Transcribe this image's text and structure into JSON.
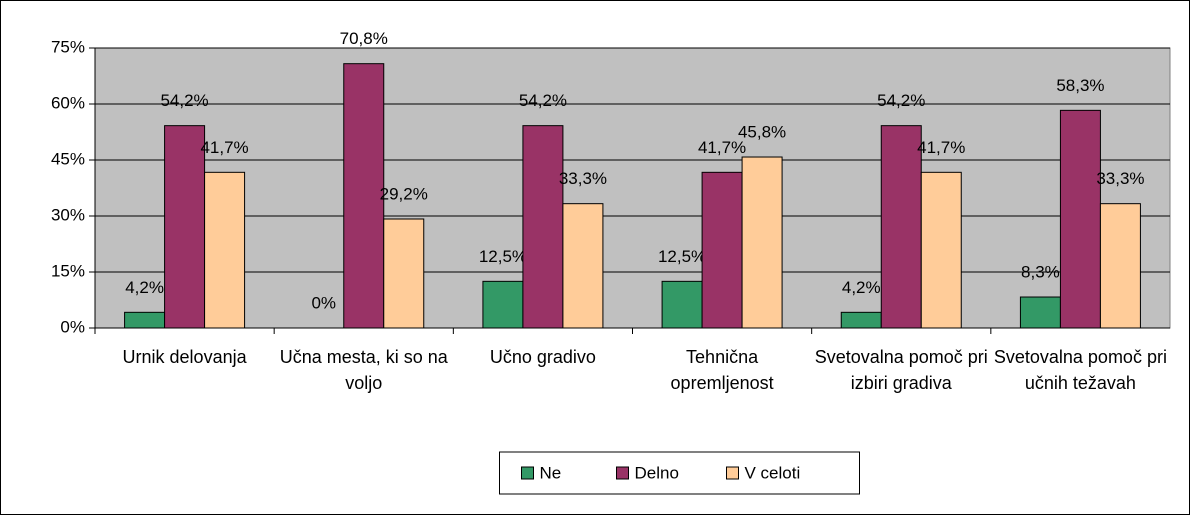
{
  "chart_data": {
    "type": "bar",
    "categories": [
      "Urnik delovanja",
      "Učna mesta, ki so na voljo",
      "Učno gradivo",
      "Tehnična opremljenost",
      "Svetovalna pomoč pri izbiri gradiva",
      "Svetovalna pomoč pri učnih težavah"
    ],
    "series": [
      {
        "name": "Ne",
        "color": "#339966",
        "values": [
          4.2,
          0,
          12.5,
          12.5,
          4.2,
          8.3
        ],
        "value_labels": [
          "4,2%",
          "0%",
          "12,5%",
          "12,5%",
          "4,2%",
          "8,3%"
        ]
      },
      {
        "name": "Delno",
        "color": "#993366",
        "values": [
          54.2,
          70.8,
          54.2,
          41.7,
          54.2,
          58.3
        ],
        "value_labels": [
          "54,2%",
          "70,8%",
          "54,2%",
          "41,7%",
          "54,2%",
          "58,3%"
        ]
      },
      {
        "name": "V celoti",
        "color": "#ffcc99",
        "values": [
          41.7,
          29.2,
          33.3,
          45.8,
          41.7,
          33.3
        ],
        "value_labels": [
          "41,7%",
          "29,2%",
          "33,3%",
          "45,8%",
          "41,7%",
          "33,3%"
        ]
      }
    ],
    "ylim": [
      0,
      75
    ],
    "yticks": [
      {
        "value": 0,
        "label": "0%"
      },
      {
        "value": 15,
        "label": "15%"
      },
      {
        "value": 30,
        "label": "30%"
      },
      {
        "value": 45,
        "label": "45%"
      },
      {
        "value": 60,
        "label": "60%"
      },
      {
        "value": 75,
        "label": "75%"
      }
    ],
    "grid": true,
    "legend": "bottom",
    "plot_background": "#c0c0c0"
  }
}
